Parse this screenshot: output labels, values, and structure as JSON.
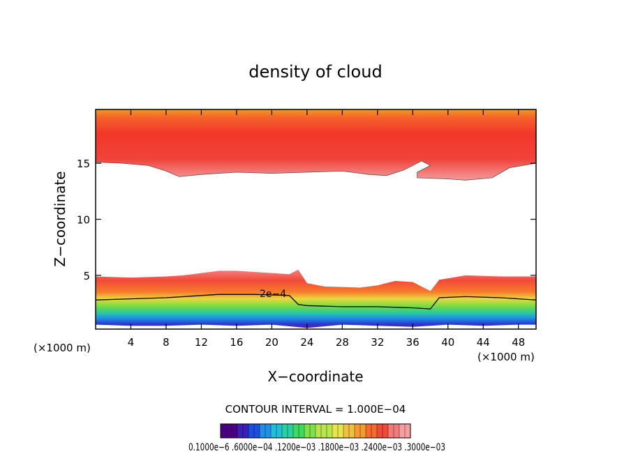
{
  "chart_data": {
    "type": "heatmap",
    "title": "density of cloud",
    "xlabel": "X−coordinate",
    "ylabel": "Z−coordinate",
    "x_unit_left": "(×1000 m)",
    "x_unit_right": "(×1000 m)",
    "xlim": [
      0,
      50
    ],
    "ylim": [
      0.2,
      19.8
    ],
    "x_ticks": [
      4,
      8,
      12,
      16,
      20,
      24,
      28,
      32,
      36,
      40,
      44,
      48
    ],
    "y_ticks": [
      5,
      10,
      15
    ],
    "contour_interval_label": "CONTOUR INTERVAL = 1.000E−04",
    "contour_label": "2e−4",
    "colorbar_labels": "0.1000e−6 .6000e−04 .1200e−03 .1800e−03 .2400e−03 .3000e−03",
    "colorbar_colors": [
      "#4b0082",
      "#3a1fb8",
      "#1a4fe0",
      "#1f8fe8",
      "#20c0d8",
      "#2ad0a0",
      "#3fd860",
      "#7ee04a",
      "#b8e64a",
      "#e6e64a",
      "#f0c040",
      "#f59a30",
      "#f56a30",
      "#f04a3a",
      "#f47a7a",
      "#f4a0a0"
    ],
    "upper_cloud": {
      "top": 19.8,
      "base_profile": [
        [
          0,
          15.1
        ],
        [
          3,
          15.0
        ],
        [
          6,
          14.8
        ],
        [
          8,
          14.3
        ],
        [
          9.5,
          13.8
        ],
        [
          12,
          14.0
        ],
        [
          16,
          14.2
        ],
        [
          20,
          14.1
        ],
        [
          24,
          14.2
        ],
        [
          28,
          14.3
        ],
        [
          31,
          14.0
        ],
        [
          33,
          13.9
        ],
        [
          35,
          14.4
        ],
        [
          37,
          15.2
        ],
        [
          38,
          14.8
        ],
        [
          36.5,
          14.2
        ],
        [
          36.5,
          13.7
        ],
        [
          40,
          13.6
        ],
        [
          42,
          13.5
        ],
        [
          45,
          13.7
        ],
        [
          47,
          14.6
        ],
        [
          50,
          15.0
        ]
      ]
    },
    "lower_cloud": {
      "top_profile": [
        [
          0,
          4.9
        ],
        [
          4,
          4.8
        ],
        [
          8,
          4.9
        ],
        [
          10,
          5.0
        ],
        [
          12,
          5.2
        ],
        [
          14,
          5.4
        ],
        [
          16,
          5.4
        ],
        [
          18,
          5.3
        ],
        [
          20,
          5.2
        ],
        [
          22,
          5.1
        ],
        [
          23,
          5.5
        ],
        [
          24,
          4.3
        ],
        [
          26,
          4.0
        ],
        [
          30,
          3.9
        ],
        [
          32,
          4.1
        ],
        [
          34,
          4.5
        ],
        [
          36,
          4.4
        ],
        [
          38,
          3.6
        ],
        [
          39,
          4.6
        ],
        [
          42,
          5.0
        ],
        [
          46,
          4.9
        ],
        [
          50,
          4.9
        ]
      ],
      "contour_2e4": [
        [
          0,
          2.8
        ],
        [
          4,
          2.9
        ],
        [
          8,
          3.0
        ],
        [
          12,
          3.2
        ],
        [
          14,
          3.3
        ],
        [
          18,
          3.3
        ],
        [
          22,
          3.2
        ],
        [
          23,
          2.4
        ],
        [
          24,
          2.3
        ],
        [
          28,
          2.2
        ],
        [
          32,
          2.2
        ],
        [
          36,
          2.1
        ],
        [
          38,
          2.0
        ],
        [
          39,
          3.0
        ],
        [
          42,
          3.1
        ],
        [
          46,
          3.0
        ],
        [
          50,
          2.8
        ]
      ],
      "bottom_profile": [
        [
          0,
          0.6
        ],
        [
          4,
          0.5
        ],
        [
          8,
          0.5
        ],
        [
          12,
          0.6
        ],
        [
          16,
          0.5
        ],
        [
          20,
          0.6
        ],
        [
          24,
          0.3
        ],
        [
          28,
          0.6
        ],
        [
          32,
          0.5
        ],
        [
          36,
          0.4
        ],
        [
          40,
          0.6
        ],
        [
          44,
          0.5
        ],
        [
          48,
          0.6
        ],
        [
          50,
          0.6
        ]
      ]
    }
  }
}
